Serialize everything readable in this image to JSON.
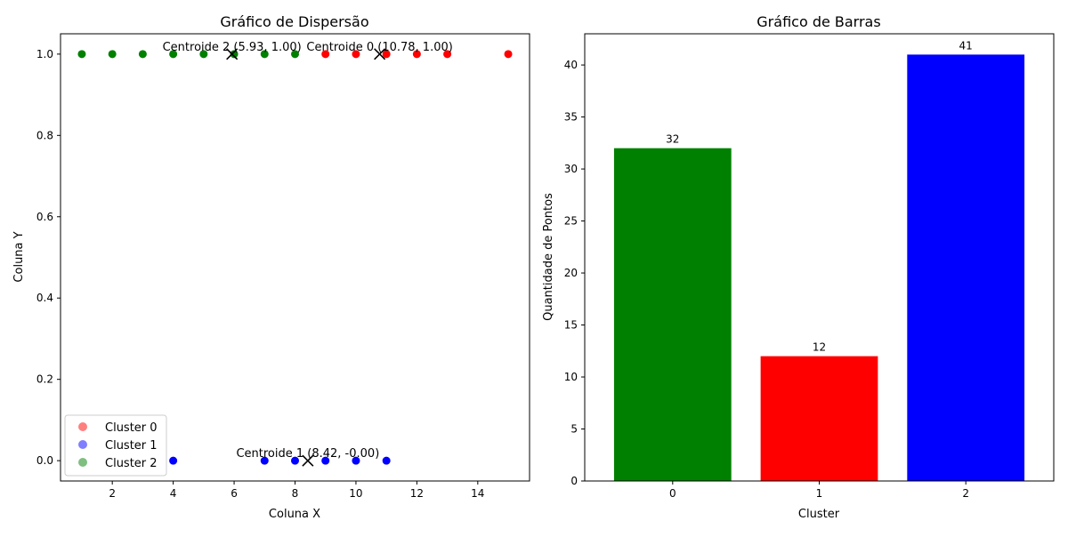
{
  "chart_data": [
    {
      "type": "scatter",
      "title": "Gráfico de Dispersão",
      "xlabel": "Coluna X",
      "ylabel": "Coluna Y",
      "xlim": [
        0.3,
        15.7
      ],
      "ylim": [
        -0.05,
        1.05
      ],
      "xticks": [
        2,
        4,
        6,
        8,
        10,
        12,
        14
      ],
      "yticks": [
        0.0,
        0.2,
        0.4,
        0.6,
        0.8,
        1.0
      ],
      "xtick_labels": [
        "2",
        "4",
        "6",
        "8",
        "10",
        "12",
        "14"
      ],
      "ytick_labels": [
        "0.0",
        "0.2",
        "0.4",
        "0.6",
        "0.8",
        "1.0"
      ],
      "grid": false,
      "legend_position": "lower-left",
      "series": [
        {
          "name": "Cluster 0",
          "color": "#ff0000",
          "x": [
            9,
            10,
            11,
            12,
            13,
            15
          ],
          "y": [
            1,
            1,
            1,
            1,
            1,
            1
          ]
        },
        {
          "name": "Cluster 1",
          "color": "#0000ff",
          "x": [
            4,
            7,
            8,
            9,
            10,
            11
          ],
          "y": [
            0,
            0,
            0,
            0,
            0,
            0
          ]
        },
        {
          "name": "Cluster 2",
          "color": "#008000",
          "x": [
            1,
            2,
            3,
            4,
            5,
            6,
            7,
            8
          ],
          "y": [
            1,
            1,
            1,
            1,
            1,
            1,
            1,
            1
          ]
        }
      ],
      "centroids": [
        {
          "x": 10.78,
          "y": 1.0,
          "label": "Centroide 0 (10.78, 1.00)"
        },
        {
          "x": 8.42,
          "y": 0.0,
          "label": "Centroide 1 (8.42, -0.00)"
        },
        {
          "x": 5.93,
          "y": 1.0,
          "label": "Centroide 2 (5.93, 1.00)"
        }
      ]
    },
    {
      "type": "bar",
      "title": "Gráfico de Barras",
      "xlabel": "Cluster",
      "ylabel": "Quantidade de Pontos",
      "categories": [
        "0",
        "1",
        "2"
      ],
      "values": [
        32,
        12,
        41
      ],
      "value_labels": [
        "32",
        "12",
        "41"
      ],
      "colors": [
        "#008000",
        "#ff0000",
        "#0000ff"
      ],
      "ylim": [
        0,
        43
      ],
      "yticks": [
        0,
        5,
        10,
        15,
        20,
        25,
        30,
        35,
        40
      ],
      "ytick_labels": [
        "0",
        "5",
        "10",
        "15",
        "20",
        "25",
        "30",
        "35",
        "40"
      ],
      "grid": false
    }
  ]
}
